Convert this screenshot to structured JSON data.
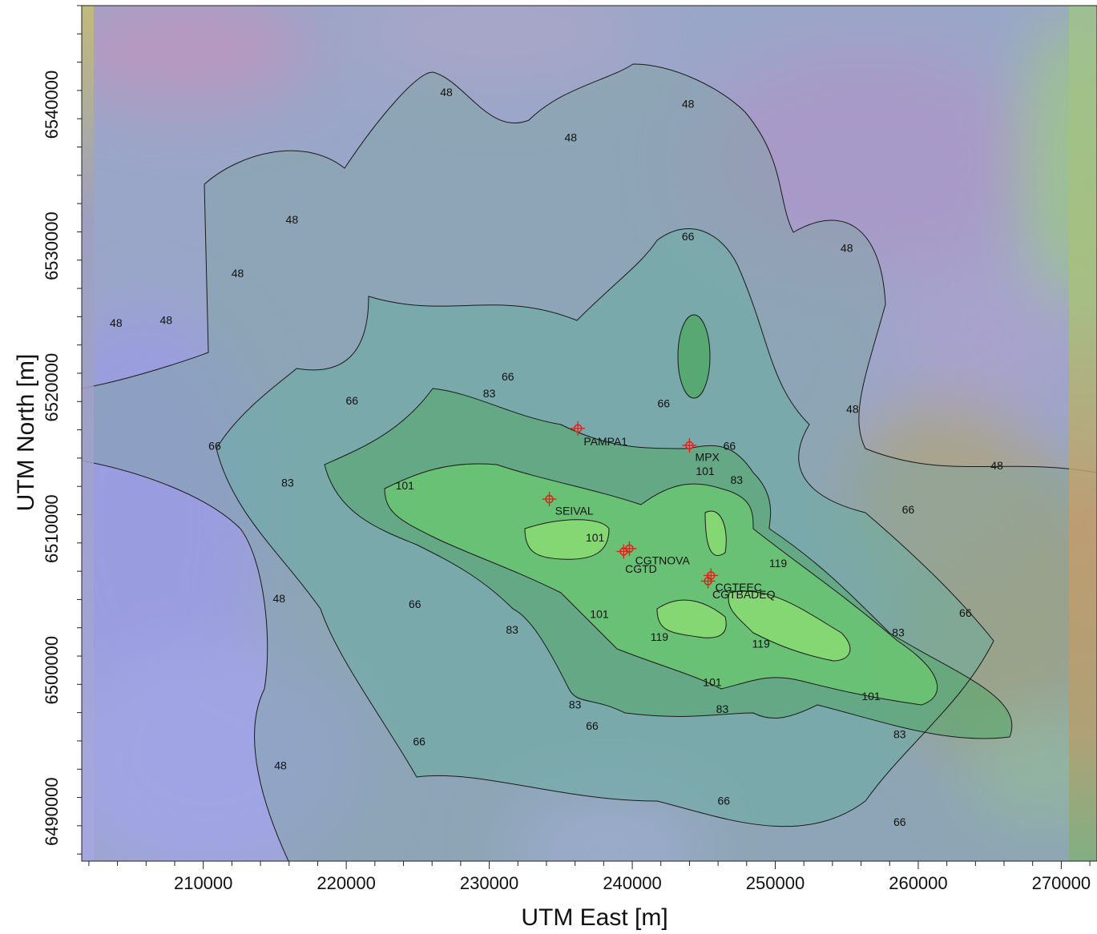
{
  "map": {
    "x_axis_title": "UTM East [m]",
    "y_axis_title": "UTM North [m]",
    "x_range": [
      201500,
      272500
    ],
    "y_range": [
      6486500,
      6547000
    ],
    "x_ticks": [
      {
        "value": 210000,
        "label": "210000"
      },
      {
        "value": 220000,
        "label": "220000"
      },
      {
        "value": 230000,
        "label": "230000"
      },
      {
        "value": 240000,
        "label": "240000"
      },
      {
        "value": 250000,
        "label": "250000"
      },
      {
        "value": 260000,
        "label": "260000"
      },
      {
        "value": 270000,
        "label": "270000"
      }
    ],
    "y_ticks": [
      {
        "value": 6490000,
        "label": "6490000"
      },
      {
        "value": 6500000,
        "label": "6500000"
      },
      {
        "value": 6510000,
        "label": "6510000"
      },
      {
        "value": 6520000,
        "label": "6520000"
      },
      {
        "value": 6530000,
        "label": "6530000"
      },
      {
        "value": 6540000,
        "label": "6540000"
      }
    ],
    "contour_levels": [
      48,
      66,
      83,
      101,
      119
    ],
    "contour_fill_colors": [
      "#7f9aa6",
      "#6da89e",
      "#5aa57a",
      "#66c866",
      "#8ee070"
    ],
    "contour_labels": [
      {
        "text": "48",
        "x": 203900,
        "y": 6524500
      },
      {
        "text": "48",
        "x": 207400,
        "y": 6524700
      },
      {
        "text": "48",
        "x": 212400,
        "y": 6528000
      },
      {
        "text": "48",
        "x": 216200,
        "y": 6531800
      },
      {
        "text": "48",
        "x": 227000,
        "y": 6540800
      },
      {
        "text": "48",
        "x": 235700,
        "y": 6537600
      },
      {
        "text": "48",
        "x": 243900,
        "y": 6540000
      },
      {
        "text": "48",
        "x": 255000,
        "y": 6529800
      },
      {
        "text": "48",
        "x": 255400,
        "y": 6518400
      },
      {
        "text": "48",
        "x": 265500,
        "y": 6514400
      },
      {
        "text": "48",
        "x": 215300,
        "y": 6505000
      },
      {
        "text": "48",
        "x": 215400,
        "y": 6493200
      },
      {
        "text": "66",
        "x": 243900,
        "y": 6530600
      },
      {
        "text": "66",
        "x": 231300,
        "y": 6520700
      },
      {
        "text": "66",
        "x": 220400,
        "y": 6519000
      },
      {
        "text": "66",
        "x": 242200,
        "y": 6518800
      },
      {
        "text": "66",
        "x": 210800,
        "y": 6515800
      },
      {
        "text": "66",
        "x": 246800,
        "y": 6515800
      },
      {
        "text": "66",
        "x": 259300,
        "y": 6511300
      },
      {
        "text": "66",
        "x": 224800,
        "y": 6504600
      },
      {
        "text": "66",
        "x": 263300,
        "y": 6504000
      },
      {
        "text": "66",
        "x": 237200,
        "y": 6496000
      },
      {
        "text": "66",
        "x": 225100,
        "y": 6494900
      },
      {
        "text": "66",
        "x": 246400,
        "y": 6490700
      },
      {
        "text": "66",
        "x": 258700,
        "y": 6489200
      },
      {
        "text": "83",
        "x": 230000,
        "y": 6519500
      },
      {
        "text": "83",
        "x": 215900,
        "y": 6513200
      },
      {
        "text": "83",
        "x": 247300,
        "y": 6513400
      },
      {
        "text": "83",
        "x": 231600,
        "y": 6502800
      },
      {
        "text": "83",
        "x": 258600,
        "y": 6502600
      },
      {
        "text": "83",
        "x": 236000,
        "y": 6497500
      },
      {
        "text": "83",
        "x": 246300,
        "y": 6497200
      },
      {
        "text": "83",
        "x": 258700,
        "y": 6495400
      },
      {
        "text": "101",
        "x": 224100,
        "y": 6513000
      },
      {
        "text": "101",
        "x": 245100,
        "y": 6514000
      },
      {
        "text": "101",
        "x": 237400,
        "y": 6509300
      },
      {
        "text": "101",
        "x": 237700,
        "y": 6503900
      },
      {
        "text": "101",
        "x": 245600,
        "y": 6499100
      },
      {
        "text": "101",
        "x": 256700,
        "y": 6498100
      },
      {
        "text": "119",
        "x": 250200,
        "y": 6507500
      },
      {
        "text": "119",
        "x": 241900,
        "y": 6502300
      },
      {
        "text": "119",
        "x": 249000,
        "y": 6501800
      }
    ],
    "sources": [
      {
        "name": "PAMPA1",
        "x": 236200,
        "y": 6517100,
        "lx": 236600,
        "ly": 6516100
      },
      {
        "name": "MPX",
        "x": 244000,
        "y": 6515900,
        "lx": 244400,
        "ly": 6515000
      },
      {
        "name": "SEIVAL",
        "x": 234200,
        "y": 6512100,
        "lx": 234600,
        "ly": 6511200
      },
      {
        "name": "CGTNOVA",
        "x": 239800,
        "y": 6508600,
        "lx": 240200,
        "ly": 6507700
      },
      {
        "name": "CGTD",
        "x": 239400,
        "y": 6508400,
        "lx": 239500,
        "ly": 6507100
      },
      {
        "name": "CGTEEC",
        "x": 245500,
        "y": 6506700,
        "lx": 245800,
        "ly": 6505800
      },
      {
        "name": "CGTBADEQ",
        "x": 245300,
        "y": 6506300,
        "lx": 245600,
        "ly": 6505300
      }
    ],
    "colors": {
      "contour_line": "#1a1a1a",
      "source_marker": "#e0241c",
      "background_low": "#a6a6e6",
      "background_high": "#c8a06e"
    }
  }
}
